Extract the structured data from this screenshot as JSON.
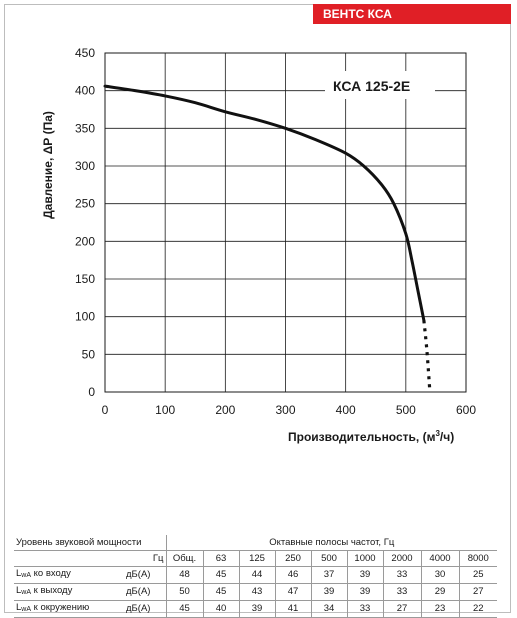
{
  "brand": "ВЕНТС КСА",
  "chart_data": {
    "type": "line",
    "model_label": "КСА 125-2Е",
    "xlabel": "Производительность, (м",
    "xlabel_sup": "3",
    "xlabel_end": "/ч)",
    "ylabel": "Давление, ΔР (Па)",
    "xlim": [
      0,
      600
    ],
    "ylim": [
      0,
      450
    ],
    "x_ticks": [
      "0",
      "100",
      "200",
      "300",
      "400",
      "500",
      "600"
    ],
    "y_ticks": [
      "0",
      "50",
      "100",
      "150",
      "200",
      "250",
      "300",
      "350",
      "400",
      "450"
    ],
    "grid": true,
    "series": [
      {
        "style": "solid",
        "color": "#111111",
        "x": [
          0,
          50,
          100,
          150,
          200,
          250,
          300,
          350,
          400,
          430,
          460,
          480,
          500,
          510,
          520,
          530
        ],
        "y": [
          406,
          400,
          393,
          384,
          372,
          362,
          350,
          335,
          317,
          300,
          275,
          250,
          210,
          175,
          135,
          95
        ]
      },
      {
        "style": "dotted",
        "color": "#111111",
        "x": [
          530,
          535,
          540
        ],
        "y": [
          95,
          55,
          0
        ]
      }
    ]
  },
  "table": {
    "title": "Уровень звуковой мощности",
    "bands_title": "Октавные полосы частот, Гц",
    "hz_label": "Гц",
    "columns": [
      "Общ.",
      "63",
      "125",
      "250",
      "500",
      "1000",
      "2000",
      "4000",
      "8000"
    ],
    "rows": [
      {
        "lwa": "L",
        "sub": "wA",
        "label": " ко входу",
        "unit": "дБ(А)",
        "values": [
          "48",
          "45",
          "44",
          "46",
          "37",
          "39",
          "33",
          "30",
          "25"
        ]
      },
      {
        "lwa": "L",
        "sub": "wA",
        "label": " к выходу",
        "unit": "дБ(А)",
        "values": [
          "50",
          "45",
          "43",
          "47",
          "39",
          "39",
          "33",
          "29",
          "27"
        ]
      },
      {
        "lwa": "L",
        "sub": "wA",
        "label": " к окружению",
        "unit": "дБ(А)",
        "values": [
          "45",
          "40",
          "39",
          "41",
          "34",
          "33",
          "27",
          "23",
          "22"
        ]
      }
    ]
  }
}
